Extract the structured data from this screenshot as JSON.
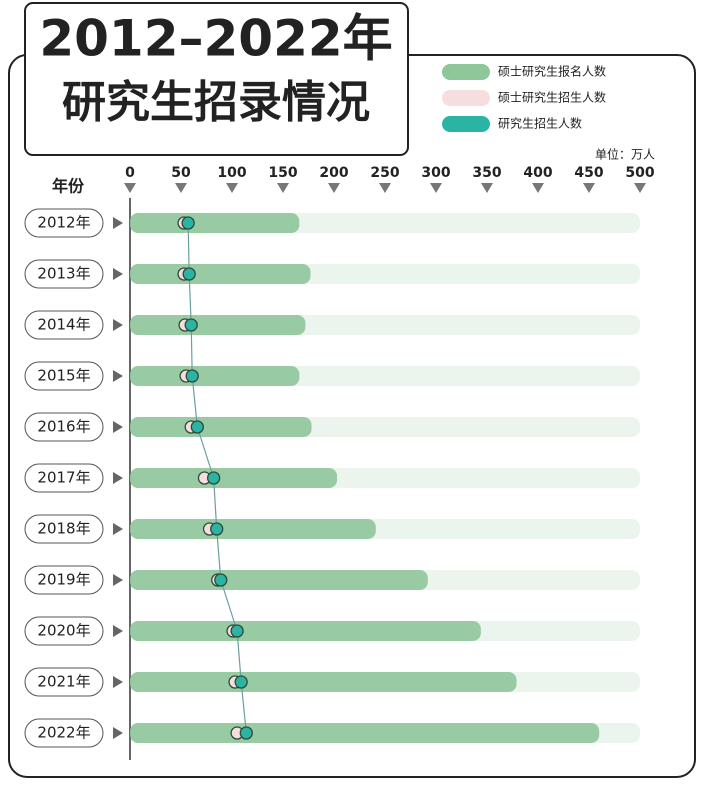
{
  "chart_data": {
    "type": "bar-dot",
    "title": "2012–2022年",
    "subtitle": "研究生招录情况",
    "y_label": "年份",
    "unit": "单位：万人",
    "categories": [
      "2012年",
      "2013年",
      "2014年",
      "2015年",
      "2016年",
      "2017年",
      "2018年",
      "2019年",
      "2020年",
      "2021年",
      "2022年"
    ],
    "series": [
      {
        "name": "硕士研究生报名人数",
        "color": "#8fc79a",
        "values": [
          166,
          177,
          172,
          166,
          178,
          203,
          241,
          292,
          344,
          379,
          460
        ]
      },
      {
        "name": "硕士研究生招生人数",
        "color": "#f6dede",
        "values": [
          53,
          53,
          54,
          55,
          60,
          73,
          78,
          86,
          101,
          103,
          105
        ]
      },
      {
        "name": "研究生招生人数",
        "color": "#2bb3a3",
        "values": [
          57,
          58,
          60,
          61,
          66,
          82,
          85,
          89,
          105,
          109,
          114
        ]
      }
    ],
    "xlim": [
      0,
      500
    ],
    "xticks": [
      0,
      50,
      100,
      150,
      200,
      250,
      300,
      350,
      400,
      450,
      500
    ]
  }
}
